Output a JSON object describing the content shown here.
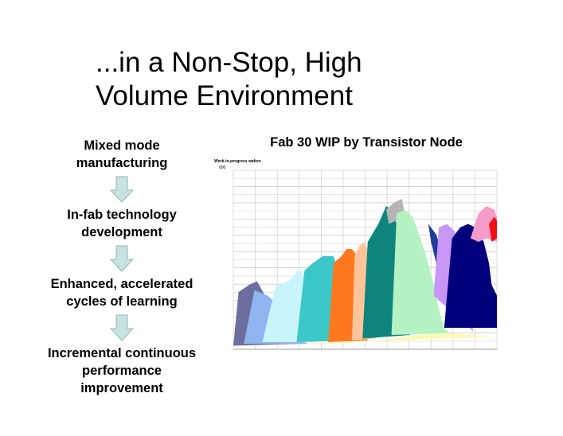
{
  "slide": {
    "title_lines": [
      "...in a Non-Stop, High",
      "Volume Environment"
    ]
  },
  "flow": {
    "steps": [
      "Mixed mode\nmanufacturing",
      "In-fab technology\ndevelopment",
      "Enhanced, accelerated\ncycles of learning",
      "Incremental continuous\nperformance\nimprovement"
    ],
    "arrow_fill": "#c8e2e2",
    "arrow_stroke": "#8fb8b8"
  },
  "chart_data": {
    "type": "area",
    "title": "Fab 30 WIP by Transistor Node",
    "ylabel": "Work-in-progress wafers",
    "ytick_top": "000",
    "grid": true,
    "xlim": [
      0,
      100
    ],
    "ylim": [
      0,
      100
    ],
    "series": [
      {
        "color": "#fafab4",
        "points": [
          [
            0,
            2
          ],
          [
            10,
            2
          ],
          [
            20,
            3
          ],
          [
            35,
            3
          ],
          [
            50,
            4
          ],
          [
            60,
            6
          ],
          [
            70,
            8
          ],
          [
            80,
            9
          ],
          [
            90,
            8
          ],
          [
            100,
            7
          ]
        ]
      },
      {
        "color": "#6b6e9e",
        "points": [
          [
            0,
            2
          ],
          [
            2,
            32
          ],
          [
            6,
            36
          ],
          [
            9,
            38
          ],
          [
            12,
            30
          ],
          [
            15,
            18
          ],
          [
            18,
            8
          ],
          [
            21,
            4
          ],
          [
            24,
            3
          ]
        ]
      },
      {
        "color": "#8fb4ef",
        "points": [
          [
            4,
            3
          ],
          [
            8,
            33
          ],
          [
            13,
            30
          ],
          [
            16,
            26
          ],
          [
            18,
            18
          ],
          [
            20,
            15
          ],
          [
            22,
            14
          ],
          [
            24,
            10
          ],
          [
            26,
            6
          ],
          [
            28,
            3
          ]
        ]
      },
      {
        "color": "#c8f5fc",
        "points": [
          [
            11,
            4
          ],
          [
            16,
            35
          ],
          [
            21,
            38
          ],
          [
            25,
            45
          ],
          [
            27,
            40
          ],
          [
            28,
            30
          ],
          [
            29,
            20
          ],
          [
            30,
            10
          ],
          [
            31,
            4
          ]
        ]
      },
      {
        "color": "#3cc8c8",
        "points": [
          [
            24,
            4
          ],
          [
            27,
            44
          ],
          [
            30,
            48
          ],
          [
            34,
            52
          ],
          [
            38,
            52
          ],
          [
            40,
            44
          ],
          [
            42,
            36
          ],
          [
            43,
            26
          ],
          [
            44,
            12
          ],
          [
            45,
            5
          ]
        ]
      },
      {
        "color": "#ff7820",
        "points": [
          [
            36,
            4
          ],
          [
            38,
            48
          ],
          [
            41,
            52
          ],
          [
            43,
            56
          ],
          [
            45,
            56
          ],
          [
            47,
            52
          ],
          [
            48,
            42
          ],
          [
            49,
            28
          ],
          [
            50,
            12
          ],
          [
            51,
            5
          ]
        ]
      },
      {
        "color": "#ffc49a",
        "points": [
          [
            45,
            5
          ],
          [
            46,
            52
          ],
          [
            48,
            58
          ],
          [
            50,
            60
          ],
          [
            51,
            55
          ],
          [
            52,
            42
          ],
          [
            53,
            25
          ],
          [
            54,
            6
          ]
        ]
      },
      {
        "color": "#0e857c",
        "points": [
          [
            49,
            6
          ],
          [
            51,
            60
          ],
          [
            55,
            70
          ],
          [
            58,
            80
          ],
          [
            60,
            78
          ],
          [
            62,
            70
          ],
          [
            64,
            58
          ],
          [
            65,
            45
          ],
          [
            66,
            30
          ],
          [
            67,
            8
          ]
        ]
      },
      {
        "color": "#b4b4b4",
        "points": [
          [
            58,
            78
          ],
          [
            61,
            82
          ],
          [
            64,
            84
          ],
          [
            65,
            76
          ],
          [
            62,
            72
          ],
          [
            59,
            70
          ]
        ]
      },
      {
        "color": "#b4f2c4",
        "points": [
          [
            60,
            8
          ],
          [
            62,
            76
          ],
          [
            65,
            78
          ],
          [
            68,
            74
          ],
          [
            71,
            62
          ],
          [
            74,
            48
          ],
          [
            76,
            36
          ],
          [
            78,
            22
          ],
          [
            80,
            12
          ],
          [
            82,
            9
          ]
        ]
      },
      {
        "color": "#1d3c9e",
        "points": [
          [
            74,
            70
          ],
          [
            77,
            64
          ],
          [
            80,
            50
          ],
          [
            82,
            38
          ],
          [
            81,
            30
          ],
          [
            79,
            36
          ],
          [
            77,
            48
          ],
          [
            75,
            60
          ]
        ]
      },
      {
        "color": "#c896f5",
        "points": [
          [
            76,
            30
          ],
          [
            78,
            68
          ],
          [
            81,
            70
          ],
          [
            84,
            66
          ],
          [
            86,
            54
          ],
          [
            88,
            40
          ],
          [
            90,
            20
          ],
          [
            91,
            10
          ]
        ]
      },
      {
        "color": "#00007c",
        "points": [
          [
            80,
            12
          ],
          [
            83,
            62
          ],
          [
            86,
            68
          ],
          [
            89,
            70
          ],
          [
            92,
            68
          ],
          [
            95,
            60
          ],
          [
            97,
            48
          ],
          [
            98,
            36
          ],
          [
            100,
            30
          ],
          [
            100,
            12
          ]
        ]
      },
      {
        "color": "#f59ccb",
        "points": [
          [
            90,
            62
          ],
          [
            93,
            76
          ],
          [
            96,
            80
          ],
          [
            99,
            78
          ],
          [
            100,
            74
          ],
          [
            100,
            60
          ],
          [
            96,
            62
          ],
          [
            93,
            60
          ]
        ]
      },
      {
        "color": "#f01010",
        "points": [
          [
            97,
            70
          ],
          [
            99,
            74
          ],
          [
            100,
            72
          ],
          [
            100,
            62
          ],
          [
            98,
            60
          ]
        ]
      }
    ]
  }
}
